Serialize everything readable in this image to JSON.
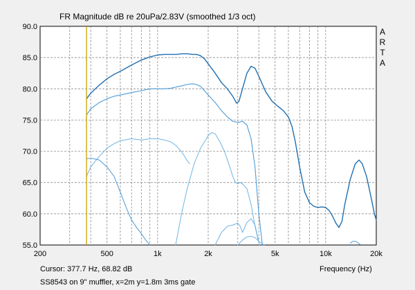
{
  "chart_data": {
    "type": "line",
    "title": "FR Magnitude dB re 20uPa/2.83V (smoothed 1/3 oct)",
    "xlabel": "Frequency (Hz)",
    "ylabel": "",
    "x_scale": "log",
    "xlim": [
      200,
      20000
    ],
    "ylim": [
      55.0,
      90.0
    ],
    "grid": true,
    "y_ticks": [
      {
        "value": 55,
        "label": "55.0"
      },
      {
        "value": 60,
        "label": "60.0"
      },
      {
        "value": 65,
        "label": "65.0"
      },
      {
        "value": 70,
        "label": "70.0"
      },
      {
        "value": 75,
        "label": "75.0"
      },
      {
        "value": 80,
        "label": "80.0"
      },
      {
        "value": 85,
        "label": "85.0"
      },
      {
        "value": 90,
        "label": "90.0"
      }
    ],
    "x_ticks": [
      {
        "value": 200,
        "label": "200"
      },
      {
        "value": 500,
        "label": "500"
      },
      {
        "value": 1000,
        "label": "1k"
      },
      {
        "value": 2000,
        "label": "2k"
      },
      {
        "value": 5000,
        "label": "5k"
      },
      {
        "value": 10000,
        "label": "10k"
      },
      {
        "value": 20000,
        "label": "20k"
      }
    ],
    "x_grid": [
      300,
      400,
      600,
      700,
      800,
      900,
      3000,
      4000,
      6000,
      7000,
      8000,
      9000
    ],
    "cursor_x": 377.7,
    "cursor_color": "#c8a000",
    "side_label": [
      "A",
      "R",
      "T",
      "A"
    ],
    "series": [
      {
        "color": "#1f6fb0",
        "width": 1.4,
        "x": [
          377.7,
          400,
          450,
          500,
          550,
          600,
          700,
          800,
          900,
          1000,
          1100,
          1200,
          1300,
          1400,
          1500,
          1600,
          1700,
          1800,
          1900,
          2000,
          2200,
          2400,
          2600,
          2800,
          2950,
          3050,
          3200,
          3400,
          3600,
          3800,
          4000,
          4400,
          4800,
          5200,
          5600,
          6000,
          6300,
          6600,
          7000,
          7500,
          8000,
          8500,
          9000,
          9500,
          10000,
          10500,
          11000,
          11500,
          12000,
          12500,
          13000,
          14000,
          15000,
          15800,
          16500,
          17500,
          18500,
          19500,
          20000
        ],
        "y": [
          78.4,
          79.3,
          80.6,
          81.6,
          82.3,
          82.8,
          83.8,
          84.6,
          85.1,
          85.4,
          85.5,
          85.5,
          85.5,
          85.6,
          85.6,
          85.5,
          85.5,
          85.3,
          84.8,
          84.0,
          82.5,
          81.0,
          80.0,
          78.8,
          77.7,
          78.0,
          80.0,
          82.5,
          83.6,
          83.3,
          82.0,
          79.5,
          78.0,
          77.2,
          76.5,
          75.5,
          74.0,
          71.5,
          67.5,
          63.5,
          61.8,
          61.2,
          61.0,
          61.1,
          61.0,
          60.5,
          59.6,
          58.5,
          57.8,
          58.8,
          61.5,
          65.5,
          68.0,
          68.6,
          68.0,
          66.0,
          63.0,
          60.0,
          59.0
        ]
      },
      {
        "color": "#4a9ad8",
        "width": 1.1,
        "x": [
          377.7,
          400,
          450,
          500,
          550,
          600,
          700,
          800,
          900,
          1000,
          1100,
          1200,
          1300,
          1400,
          1500,
          1600,
          1700,
          1800,
          1900,
          2000,
          2200,
          2400,
          2600,
          2800,
          3000,
          3200,
          3400,
          3600,
          3800,
          4000,
          4200
        ],
        "y": [
          75.8,
          76.8,
          77.8,
          78.4,
          78.8,
          79.0,
          79.4,
          79.7,
          80.0,
          80.0,
          80.0,
          80.1,
          80.3,
          80.5,
          80.7,
          80.8,
          80.7,
          80.4,
          79.7,
          79.0,
          77.8,
          76.5,
          75.5,
          74.8,
          74.6,
          74.8,
          74.2,
          72.0,
          67.5,
          60.0,
          55.0
        ]
      },
      {
        "color": "#6db4e4",
        "width": 1.0,
        "x": [
          377.7,
          400,
          450,
          500,
          550,
          600,
          700,
          800,
          900,
          1000,
          1100,
          1200,
          1300,
          1400,
          1500,
          1550
        ],
        "y": [
          66.0,
          67.5,
          69.2,
          70.5,
          71.2,
          71.7,
          72.0,
          71.8,
          72.0,
          72.0,
          71.8,
          71.5,
          70.8,
          69.8,
          68.5,
          68.0
        ]
      },
      {
        "color": "#6db4e4",
        "width": 1.0,
        "x": [
          1280,
          1400,
          1500,
          1650,
          1800,
          1900,
          2000,
          2100,
          2200,
          2350,
          2500,
          2650,
          2800,
          2900,
          3000,
          3100,
          3200,
          3400,
          3600,
          3800,
          3950,
          4050
        ],
        "y": [
          55.0,
          60.5,
          64.0,
          68.0,
          70.5,
          71.5,
          72.5,
          73.0,
          72.8,
          71.5,
          70.0,
          68.0,
          66.0,
          65.0,
          64.8,
          65.0,
          64.8,
          64.0,
          61.5,
          58.0,
          56.0,
          55.0
        ]
      },
      {
        "color": "#4a9ad8",
        "width": 1.0,
        "x": [
          377.7,
          400,
          450,
          500,
          550,
          600,
          650,
          700,
          750,
          800,
          850,
          900
        ],
        "y": [
          68.8,
          68.9,
          68.6,
          67.5,
          66.0,
          63.5,
          61.0,
          59.0,
          57.8,
          56.8,
          55.8,
          55.0
        ]
      },
      {
        "color": "#6db4e4",
        "width": 1.0,
        "x": [
          2200,
          2400,
          2600,
          2800,
          3000,
          3100,
          3200,
          3400,
          3600,
          3800,
          4000
        ],
        "y": [
          55.0,
          57.0,
          58.0,
          58.2,
          58.5,
          58.0,
          57.0,
          58.6,
          59.2,
          58.2,
          55.5
        ]
      },
      {
        "color": "#6db4e4",
        "width": 1.0,
        "x": [
          3000,
          3200,
          3400,
          3600,
          3800,
          4000,
          4300
        ],
        "y": [
          55.0,
          55.8,
          56.3,
          56.4,
          56.2,
          55.6,
          55.0
        ]
      },
      {
        "color": "#4a9ad8",
        "width": 1.0,
        "x": [
          14000,
          14500,
          15000,
          15500,
          16000
        ],
        "y": [
          55.3,
          55.6,
          55.6,
          55.4,
          55.1
        ]
      }
    ]
  },
  "cursor_readout": "Cursor: 377.7 Hz, 68.82 dB",
  "measurement_note": "SS8543 on 9\" muffler, x=2m y=1.8m 3ms gate"
}
